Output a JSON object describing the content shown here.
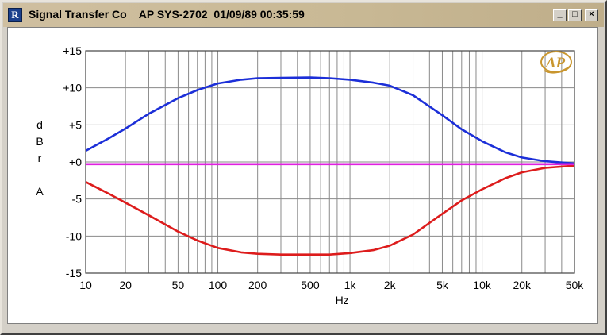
{
  "window": {
    "title": "Signal Transfer Co    AP SYS-2702  01/09/89 00:35:59",
    "minimize_label": "_",
    "maximize_label": "□",
    "close_label": "×",
    "app_icon_letter": "R"
  },
  "chart_data": {
    "type": "line",
    "xscale": "log",
    "xlim": [
      10,
      50000
    ],
    "ylim": [
      -15,
      15
    ],
    "grid": true,
    "ylabel_lines": [
      "d",
      "B",
      "r",
      "",
      "A"
    ],
    "xlabel": "Hz",
    "logo_text": "AP",
    "yticks": [
      15,
      10,
      5,
      0,
      -5,
      -10,
      -15
    ],
    "ytick_labels": [
      "+15",
      "+10",
      "+5",
      "+0",
      "-5",
      "-10",
      "-15"
    ],
    "xticks": [
      10,
      20,
      50,
      100,
      200,
      500,
      1000,
      2000,
      5000,
      10000,
      20000,
      50000
    ],
    "xtick_labels": [
      "10",
      "20",
      "50",
      "100",
      "200",
      "500",
      "1k",
      "2k",
      "5k",
      "10k",
      "20k",
      "50k"
    ],
    "series": [
      {
        "color": "#1c2fd8",
        "x": [
          10,
          15,
          20,
          30,
          50,
          70,
          100,
          150,
          200,
          300,
          500,
          700,
          1000,
          1500,
          2000,
          3000,
          5000,
          7000,
          10000,
          15000,
          20000,
          30000,
          50000
        ],
        "y": [
          1.5,
          3.2,
          4.5,
          6.5,
          8.6,
          9.7,
          10.6,
          11.1,
          11.3,
          11.35,
          11.4,
          11.3,
          11.1,
          10.7,
          10.3,
          9.0,
          6.3,
          4.4,
          2.8,
          1.3,
          0.6,
          0.1,
          -0.2
        ]
      },
      {
        "color": "#dd1c1c",
        "x": [
          10,
          15,
          20,
          30,
          50,
          70,
          100,
          150,
          200,
          300,
          500,
          700,
          1000,
          1500,
          2000,
          3000,
          5000,
          7000,
          10000,
          15000,
          20000,
          30000,
          50000
        ],
        "y": [
          -2.7,
          -4.3,
          -5.5,
          -7.2,
          -9.4,
          -10.6,
          -11.6,
          -12.2,
          -12.4,
          -12.5,
          -12.5,
          -12.5,
          -12.3,
          -11.9,
          -11.3,
          -9.8,
          -7.0,
          -5.2,
          -3.7,
          -2.2,
          -1.4,
          -0.8,
          -0.5
        ]
      },
      {
        "color": "#e020e0",
        "x": [
          10,
          50000
        ],
        "y": [
          -0.3,
          -0.3
        ]
      }
    ]
  }
}
